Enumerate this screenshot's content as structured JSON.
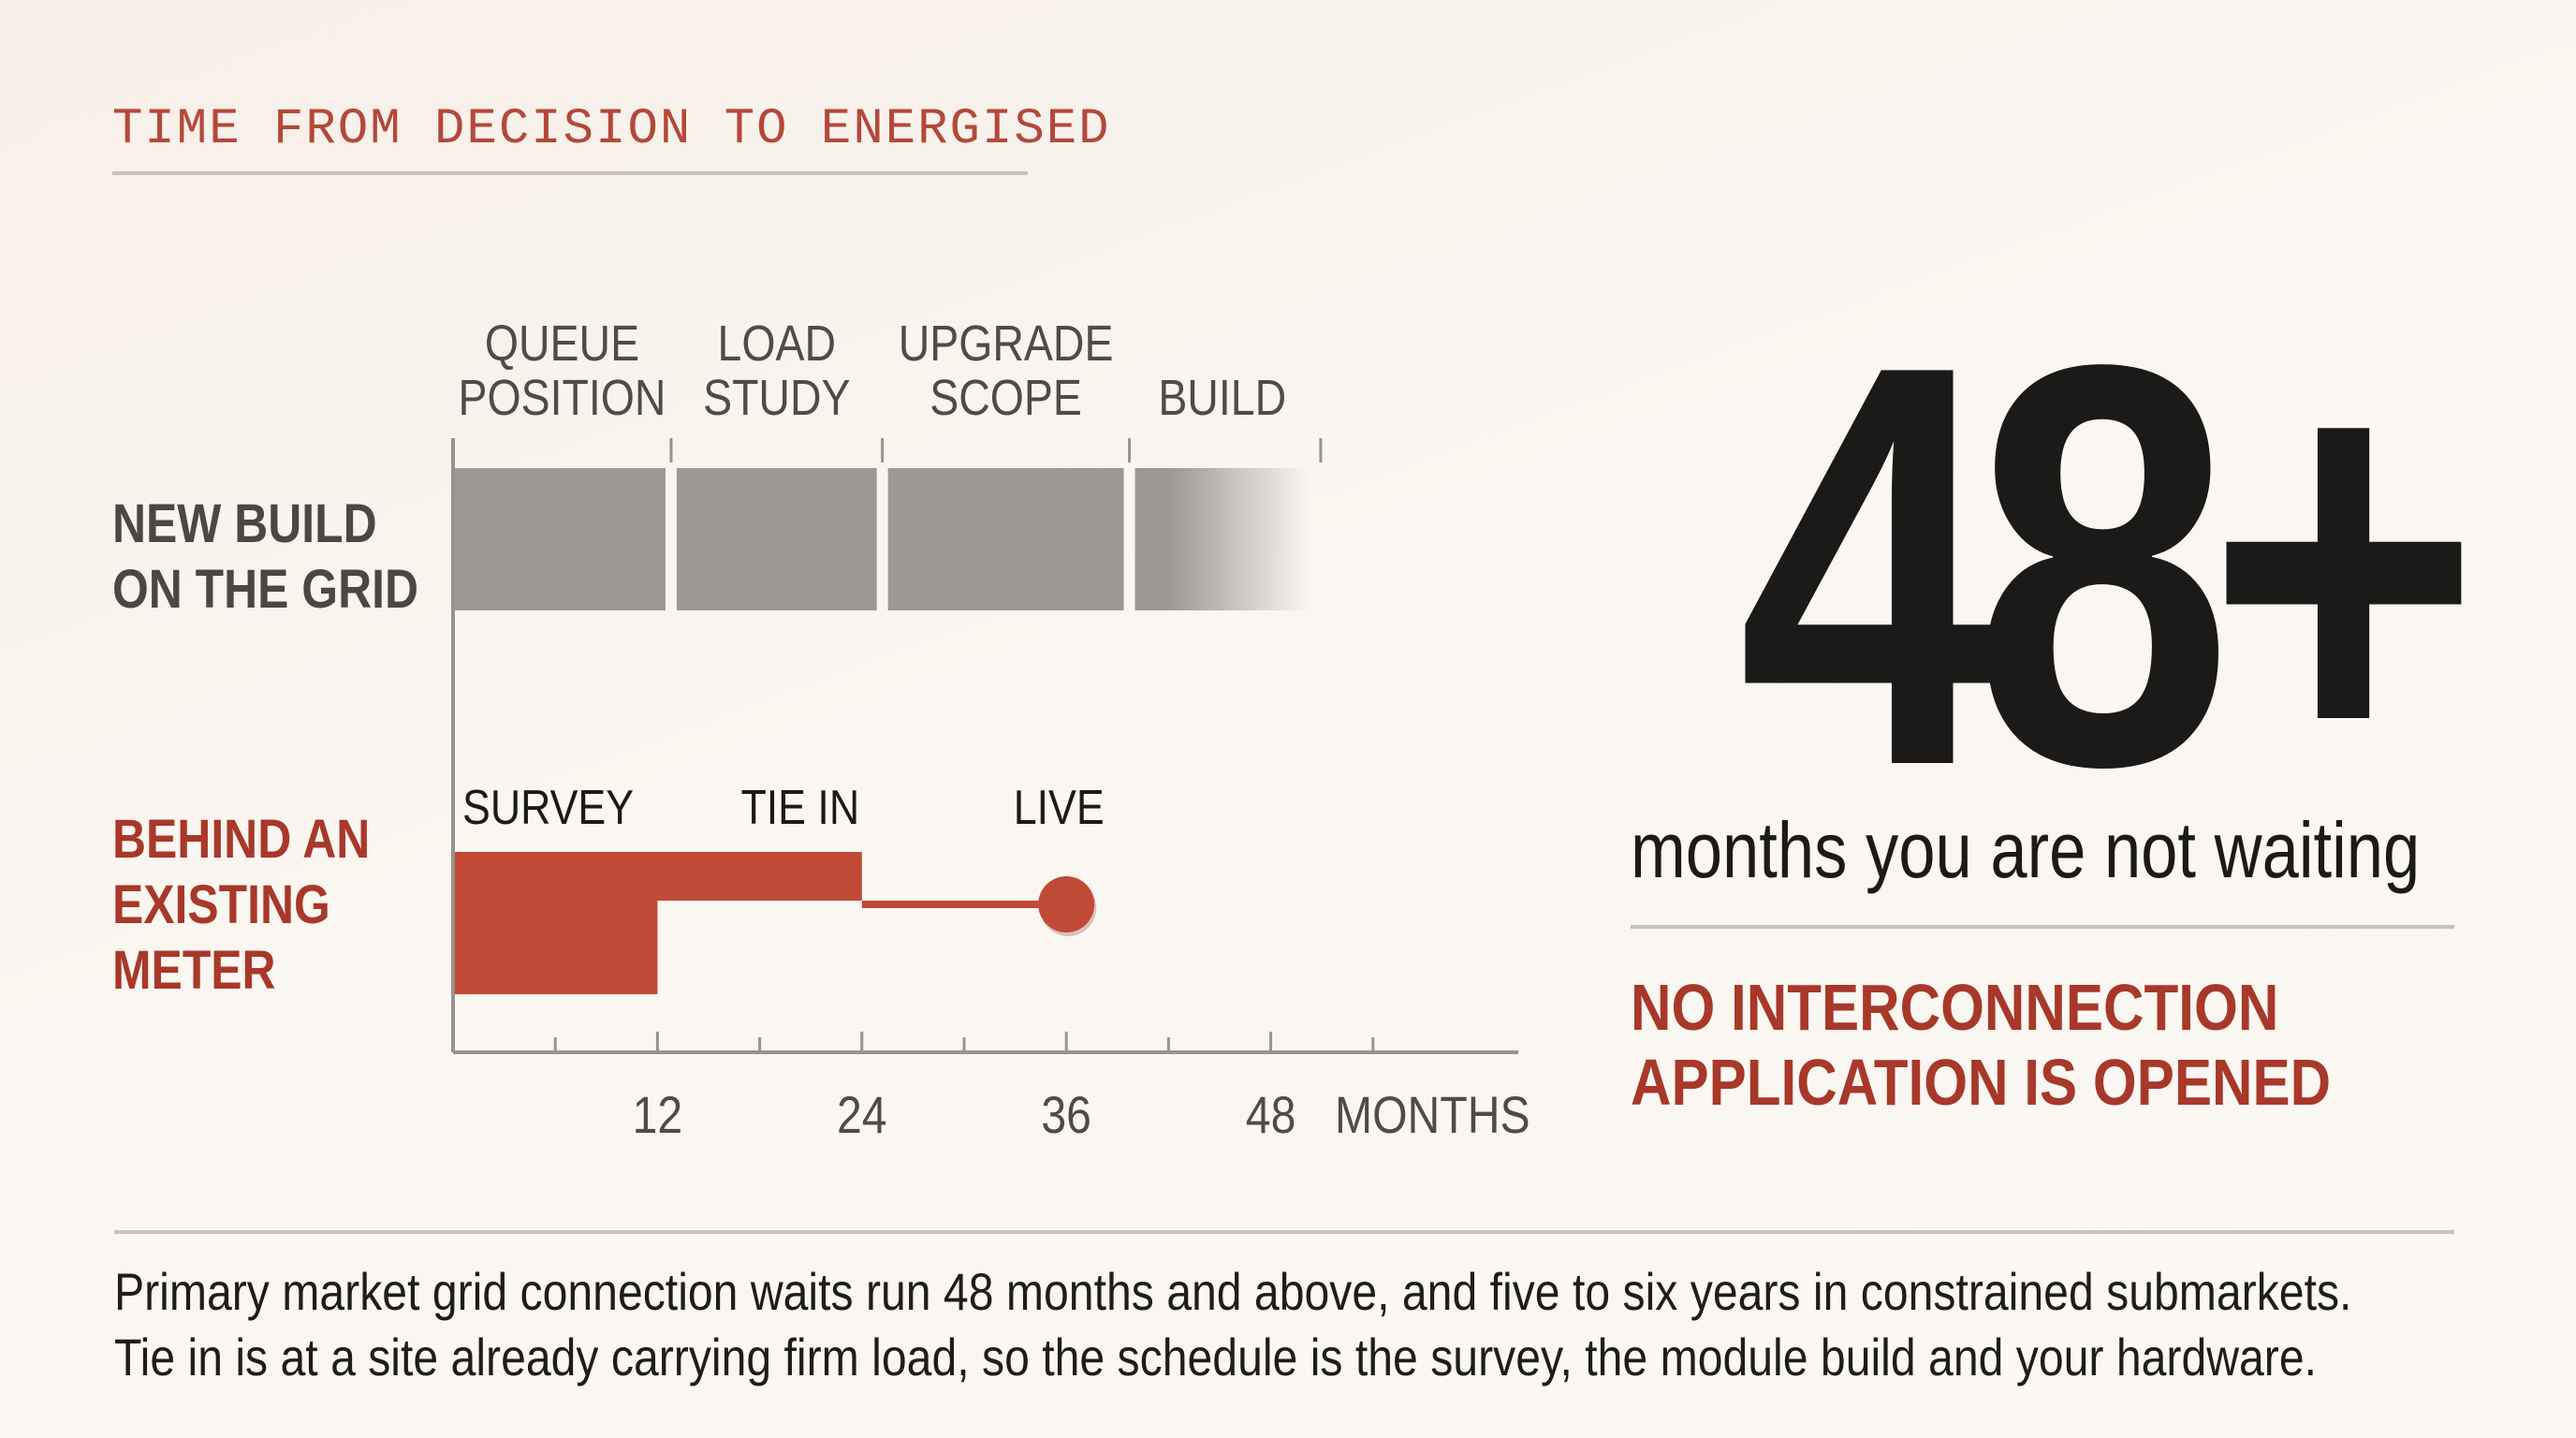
{
  "kicker": "TIME FROM DECISION TO ENERGISED",
  "colors": {
    "grid_bar": "#9c9894",
    "meter_bar": "#c04a36",
    "accent_text": "#a8382a",
    "axis": "#9a928c"
  },
  "chart_data": {
    "type": "bar",
    "subtype": "gantt",
    "x_unit": "MONTHS",
    "xlim": [
      0,
      52
    ],
    "x_ticks": [
      12,
      24,
      36,
      48
    ],
    "x_tick_labels": [
      "12",
      "24",
      "36",
      "48"
    ],
    "rows": [
      {
        "label": [
          "NEW BUILD",
          "ON THE GRID"
        ],
        "phases": [
          {
            "name": [
              "QUEUE",
              "POSITION"
            ],
            "start": 0,
            "end": 12.8
          },
          {
            "name": [
              "LOAD",
              "STUDY"
            ],
            "start": 12.8,
            "end": 25.2
          },
          {
            "name": [
              "UPGRADE",
              "SCOPE"
            ],
            "start": 25.2,
            "end": 39.7
          },
          {
            "name": [
              "BUILD"
            ],
            "start": 39.7,
            "end": 50.6,
            "fades": true
          }
        ]
      },
      {
        "label": [
          "BEHIND AN",
          "EXISTING",
          "METER"
        ],
        "phases": [
          {
            "name": [
              "SURVEY"
            ],
            "start": 0,
            "end": 12
          },
          {
            "name": [
              "TIE IN"
            ],
            "start": 0,
            "end": 24
          }
        ],
        "milestone": {
          "name": [
            "LIVE"
          ],
          "at": 36
        }
      }
    ]
  },
  "big_number": "48+",
  "big_caption": "months you are not waiting",
  "callout": [
    "NO INTERCONNECTION",
    "APPLICATION IS OPENED"
  ],
  "footer": [
    "Primary market grid connection waits run 48 months and above, and five to six years in constrained submarkets.",
    "Tie in is at a site already carrying firm load, so the schedule is the survey, the module build and your hardware."
  ]
}
